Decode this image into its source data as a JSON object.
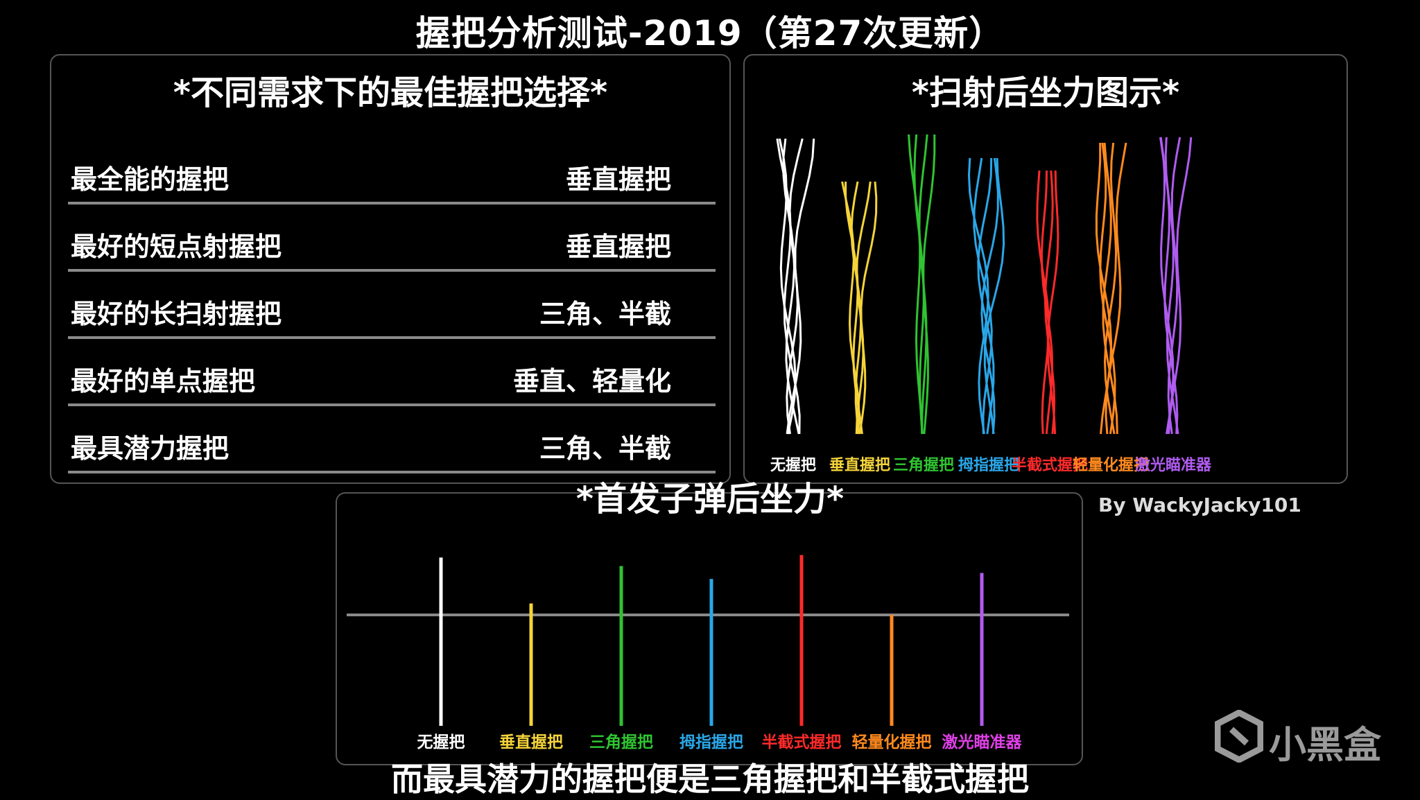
{
  "title": "握把分析测试-2019（第27次更新）",
  "left_panel": {
    "title": "*不同需求下的最佳握把选择*",
    "rows": [
      {
        "label": "最全能的握把",
        "value": "垂直握把"
      },
      {
        "label": "最好的短点射握把",
        "value": "垂直握把"
      },
      {
        "label": "最好的长扫射握把",
        "value": "三角、半截"
      },
      {
        "label": "最好的单点握把",
        "value": "垂直、轻量化"
      },
      {
        "label": "最具潜力握把",
        "value": "三角、半截"
      }
    ]
  },
  "credit": "By WackyJacky101",
  "subtitle": "而最具潜力的握把便是三角握把和半截式握把",
  "logo": {
    "icon": "xiaoheihe-logo-icon",
    "text": "小黑盒"
  },
  "chart_data": [
    {
      "type": "line",
      "title": "*扫射后坐力图示*",
      "series": [
        {
          "name": "无握把",
          "color": "#ffffff",
          "spread": 1.0,
          "strands": 5
        },
        {
          "name": "垂直握把",
          "color": "#f5d43a",
          "spread": 0.7,
          "strands": 5
        },
        {
          "name": "三角握把",
          "color": "#2fc431",
          "spread": 0.5,
          "strands": 4
        },
        {
          "name": "拇指握把",
          "color": "#2aa7e8",
          "spread": 0.9,
          "strands": 5
        },
        {
          "name": "半截式握把",
          "color": "#ff2a2a",
          "spread": 0.55,
          "strands": 4
        },
        {
          "name": "轻量化握把",
          "color": "#ff8a1e",
          "spread": 0.8,
          "strands": 5
        },
        {
          "name": "激光瞄准器",
          "color": "#b05cf0",
          "spread": 0.75,
          "strands": 5
        }
      ]
    },
    {
      "type": "bar",
      "title": "*首发子弹后坐力*",
      "categories": [
        "无握把",
        "垂直握把",
        "三角握把",
        "拇指握把",
        "半截式握把",
        "轻量化握把",
        "激光瞄准器"
      ],
      "colors": [
        "#ffffff",
        "#f5d43a",
        "#2fc431",
        "#2aa7e8",
        "#ff2a2a",
        "#ff8a1e",
        "#b05cf0"
      ],
      "label_colors": [
        "#ffffff",
        "#f5d43a",
        "#2fc431",
        "#2aa7e8",
        "#ff2a2a",
        "#ff8a1e",
        "#e040e8"
      ],
      "values": [
        1.15,
        0.23,
        0.98,
        0.72,
        1.2,
        0.0,
        0.84
      ],
      "baseline": 0,
      "ylim": [
        -1.6,
        1.3
      ]
    }
  ]
}
